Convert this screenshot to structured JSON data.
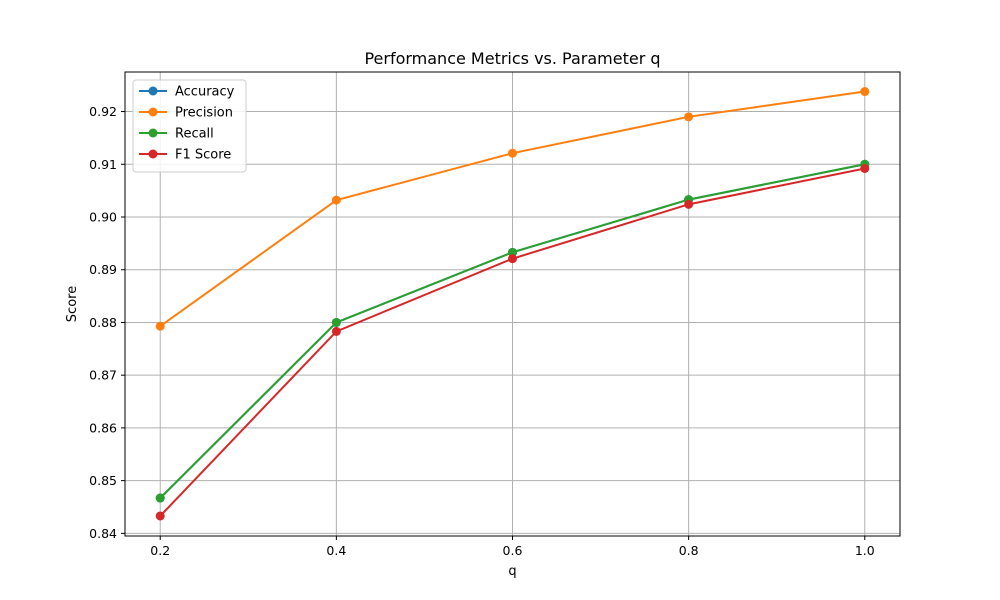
{
  "chart_data": {
    "type": "line",
    "title": "Performance Metrics vs. Parameter q",
    "xlabel": "q",
    "ylabel": "Score",
    "x": [
      0.2,
      0.4,
      0.6,
      0.8,
      1.0
    ],
    "xlim": [
      0.16,
      1.04
    ],
    "ylim": [
      0.8395,
      0.9275
    ],
    "xticks": [
      "0.2",
      "0.4",
      "0.6",
      "0.8",
      "1.0"
    ],
    "yticks": [
      "0.84",
      "0.85",
      "0.86",
      "0.87",
      "0.88",
      "0.89",
      "0.90",
      "0.91",
      "0.92"
    ],
    "grid": true,
    "legend_position": "top-left",
    "series": [
      {
        "name": "Accuracy",
        "color": "#1f77b4",
        "values": [
          0.8467,
          0.88,
          0.8933,
          0.9033,
          0.91
        ]
      },
      {
        "name": "Precision",
        "color": "#ff7f0e",
        "values": [
          0.8793,
          0.9032,
          0.9121,
          0.919,
          0.9238
        ]
      },
      {
        "name": "Recall",
        "color": "#2ca02c",
        "values": [
          0.8467,
          0.88,
          0.8933,
          0.9033,
          0.91
        ]
      },
      {
        "name": "F1 Score",
        "color": "#d62728",
        "values": [
          0.8433,
          0.8783,
          0.8921,
          0.9024,
          0.9092
        ]
      }
    ]
  }
}
